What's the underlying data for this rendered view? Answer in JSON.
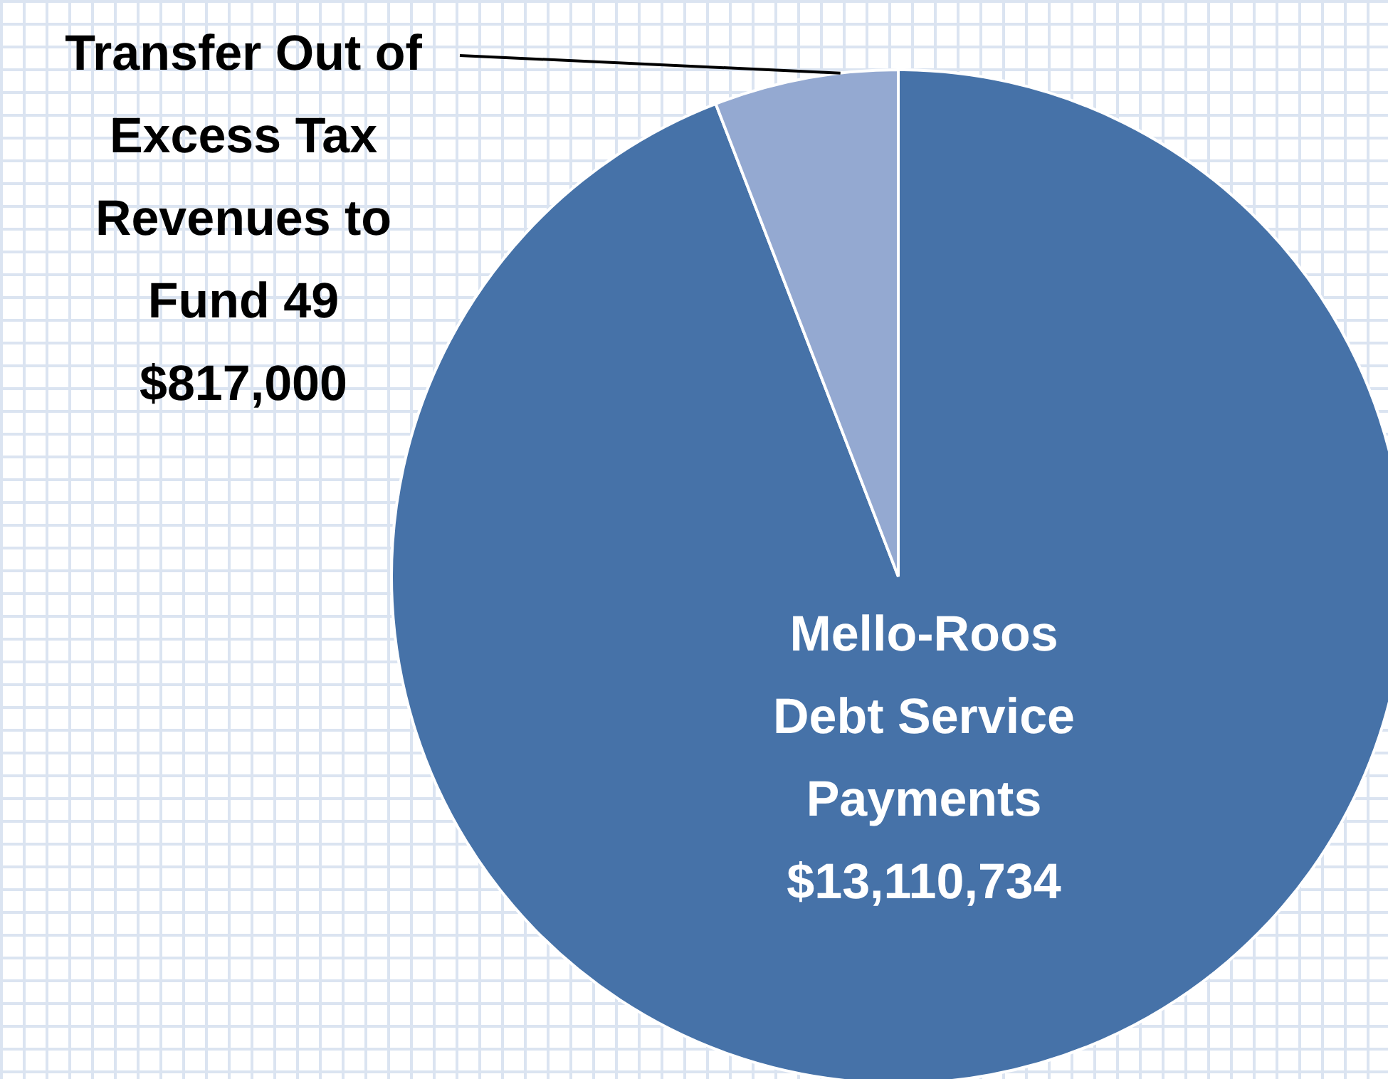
{
  "chart_data": {
    "type": "pie",
    "categories": [
      "Mello-Roos Debt Service Payments",
      "Transfer Out of Excess Tax Revenues to Fund 49"
    ],
    "values": [
      13110734,
      817000
    ],
    "value_labels": [
      "$13,110,734",
      "$817,000"
    ],
    "colors": [
      "#4672a8",
      "#94a9d1"
    ]
  }
}
